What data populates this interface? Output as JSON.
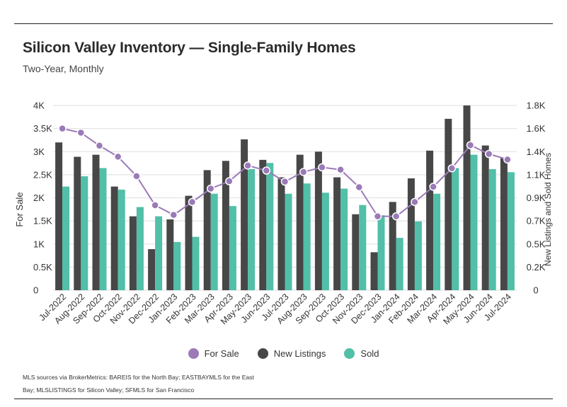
{
  "header": {
    "title": "Silicon Valley Inventory — Single-Family Homes",
    "subtitle": "Two-Year, Monthly"
  },
  "legend": {
    "for_sale": "For Sale",
    "new_listings": "New Listings",
    "sold": "Sold"
  },
  "source": {
    "line1": "MLS sources via BrokerMetrics: BAREIS for the North Bay; EASTBAYMLS for the East",
    "line2": "Bay; MLSLISTINGS for Silicon Valley; SFMLS for San Francisco"
  },
  "colors": {
    "for_sale": "#9b7ab8",
    "new_listings": "#474747",
    "sold": "#52bfa8"
  },
  "chart_data": {
    "type": "bar",
    "categories": [
      "Jul-2022",
      "Aug-2022",
      "Sep-2022",
      "Oct-2022",
      "Nov-2022",
      "Dec-2022",
      "Jan-2023",
      "Feb-2023",
      "Mar-2023",
      "Apr-2023",
      "May-2023",
      "Jun-2023",
      "Jul-2023",
      "Aug-2023",
      "Sep-2023",
      "Oct-2023",
      "Nov-2023",
      "Dec-2023",
      "Jan-2024",
      "Feb-2024",
      "Mar-2024",
      "Apr-2024",
      "May-2024",
      "Jun-2024",
      "Jul-2024"
    ],
    "ylabel_left": "For Sale",
    "ylabel_right": "New Listings and Sold Homes",
    "left_axis": {
      "ylim": [
        0,
        4000
      ],
      "ticks": [
        "0",
        "0.5K",
        "1K",
        "1.5K",
        "2K",
        "2.5K",
        "3K",
        "3.5K",
        "4K"
      ]
    },
    "right_axis": {
      "ylim": [
        0,
        1800
      ],
      "ticks": [
        "0",
        "0.2K",
        "0.5K",
        "0.7K",
        "0.9K",
        "1.1K",
        "1.4K",
        "1.6K",
        "1.8K"
      ]
    },
    "grid": true,
    "legend_position": "bottom",
    "series": [
      {
        "name": "For Sale",
        "kind": "line",
        "axis": "left",
        "values": [
          3500,
          3410,
          3130,
          2890,
          2470,
          1840,
          1630,
          1910,
          2200,
          2360,
          2700,
          2590,
          2350,
          2560,
          2660,
          2610,
          2230,
          1600,
          1600,
          1910,
          2240,
          2640,
          3140,
          2950,
          2830
        ]
      },
      {
        "name": "New Listings",
        "kind": "bar",
        "axis": "right",
        "values": [
          1440,
          1300,
          1320,
          1010,
          720,
          400,
          690,
          920,
          1170,
          1260,
          1470,
          1270,
          1100,
          1320,
          1350,
          1100,
          740,
          370,
          860,
          1090,
          1360,
          1670,
          1800,
          1410,
          1290
        ]
      },
      {
        "name": "Sold",
        "kind": "bar",
        "axis": "right",
        "values": [
          1010,
          1110,
          1190,
          980,
          810,
          720,
          470,
          520,
          940,
          820,
          1180,
          1240,
          940,
          1040,
          950,
          990,
          830,
          730,
          510,
          670,
          940,
          1190,
          1320,
          1180,
          1150
        ]
      }
    ]
  }
}
